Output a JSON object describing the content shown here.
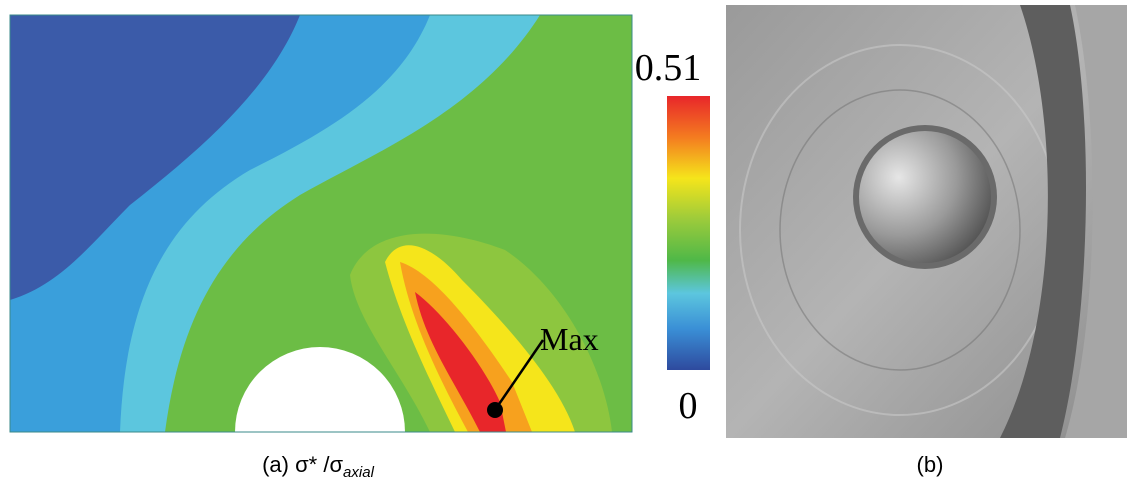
{
  "panel_a": {
    "colorbar": {
      "max": 0.51,
      "min": 0
    },
    "annotation": "Max",
    "caption": {
      "prefix": "(a) σ* /σ",
      "subscript": "axial"
    }
  },
  "panel_b": {
    "caption": "(b)"
  }
}
